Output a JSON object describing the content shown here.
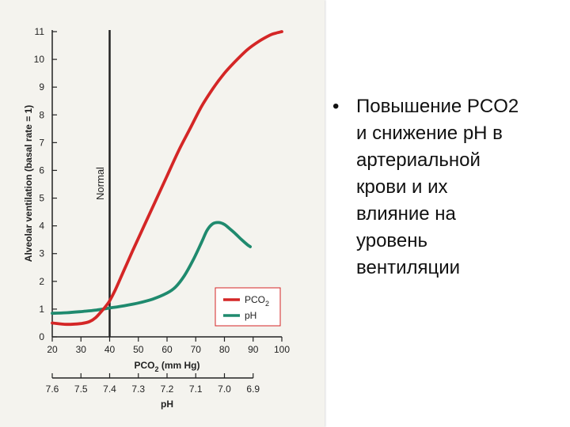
{
  "slide": {
    "bullet_symbol": "•",
    "text": "Повышение PCO2\nи снижение pH в\nартериальной\nкрови и их\nвлияние на\nуровень\nвентиляции"
  },
  "chart_data": {
    "type": "line",
    "ylabel": "Alveolar ventilation (basal rate = 1)",
    "xlabel_main": "PCO",
    "xlabel_sub": "2",
    "xlabel_unit": " (mm Hg)",
    "xlabel2": "pH",
    "ylim": [
      0,
      11
    ],
    "xlim": [
      20,
      100
    ],
    "y_ticks": [
      "0",
      "1",
      "2",
      "3",
      "4",
      "5",
      "6",
      "7",
      "8",
      "9",
      "10",
      "11"
    ],
    "x_ticks": [
      "20",
      "30",
      "40",
      "50",
      "60",
      "70",
      "80",
      "90",
      "100"
    ],
    "ph_ticks": [
      {
        "label": "7.6",
        "pco2": 20
      },
      {
        "label": "7.5",
        "pco2": 30
      },
      {
        "label": "7.4",
        "pco2": 40
      },
      {
        "label": "7.3",
        "pco2": 50
      },
      {
        "label": "7.2",
        "pco2": 60
      },
      {
        "label": "7.1",
        "pco2": 70
      },
      {
        "label": "7.0",
        "pco2": 80
      },
      {
        "label": "6.9",
        "pco2": 90
      }
    ],
    "normal_line": {
      "x": 40,
      "label": "Normal"
    },
    "colors": {
      "pco2": "#d42626",
      "ph": "#1f8a6e",
      "axis": "#222222"
    },
    "series": [
      {
        "name": "PCO",
        "name_sub": "2",
        "key": "pco2",
        "x": [
          20,
          25,
          30,
          33,
          35,
          37,
          39,
          40,
          42,
          45,
          48,
          52,
          56,
          60,
          64,
          68,
          72,
          76,
          80,
          84,
          88,
          92,
          96,
          98,
          100
        ],
        "y": [
          0.5,
          0.45,
          0.48,
          0.55,
          0.68,
          0.9,
          1.15,
          1.3,
          1.7,
          2.4,
          3.1,
          4.0,
          4.9,
          5.8,
          6.7,
          7.5,
          8.3,
          8.95,
          9.5,
          9.95,
          10.35,
          10.65,
          10.88,
          10.95,
          11.0
        ]
      },
      {
        "name": "pH",
        "key": "ph",
        "x": [
          20,
          25,
          30,
          35,
          40,
          45,
          50,
          55,
          60,
          63,
          66,
          69,
          72,
          74,
          76,
          78,
          80,
          82,
          84,
          86,
          88,
          89
        ],
        "y": [
          0.85,
          0.87,
          0.91,
          0.96,
          1.04,
          1.12,
          1.22,
          1.36,
          1.58,
          1.8,
          2.2,
          2.75,
          3.4,
          3.85,
          4.08,
          4.12,
          4.05,
          3.88,
          3.7,
          3.5,
          3.32,
          3.25
        ]
      }
    ]
  }
}
